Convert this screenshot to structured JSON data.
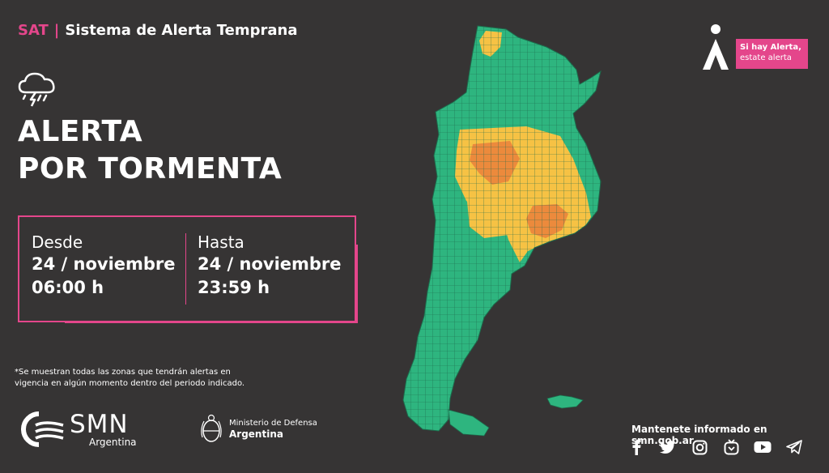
{
  "header": {
    "sat": "SAT",
    "separator": "|",
    "system": "Sistema de Alerta Temprana"
  },
  "alert": {
    "icon": "storm-cloud-icon",
    "title_line1": "ALERTA",
    "title_line2": "POR TORMENTA"
  },
  "period": {
    "from_label": "Desde",
    "from_date": "24 / noviembre",
    "from_time": "06:00 h",
    "to_label": "Hasta",
    "to_date": "24 / noviembre",
    "to_time": "23:59 h"
  },
  "note": "*Se muestran todas las zonas que tendrán alertas en vigencia en algún momento dentro del periodo indicado.",
  "badge": {
    "line1": "Si hay Alerta,",
    "line2": "estate alerta"
  },
  "map": {
    "legend_colors": {
      "green": "#2eb57f",
      "yellow": "#f6c244",
      "orange": "#ec8a3c"
    }
  },
  "footer": {
    "smn_logo": "SMN",
    "smn_sub": "Argentina",
    "ministry_line1": "Ministerio de Defensa",
    "ministry_line2": "Argentina",
    "informed_prefix": "Mantenete informado en ",
    "informed_site": "smn.gob.ar",
    "social": [
      "facebook-icon",
      "twitter-icon",
      "instagram-icon",
      "igtv-icon",
      "youtube-icon",
      "telegram-icon"
    ]
  },
  "colors": {
    "accent": "#e4468b",
    "background": "#363434"
  }
}
